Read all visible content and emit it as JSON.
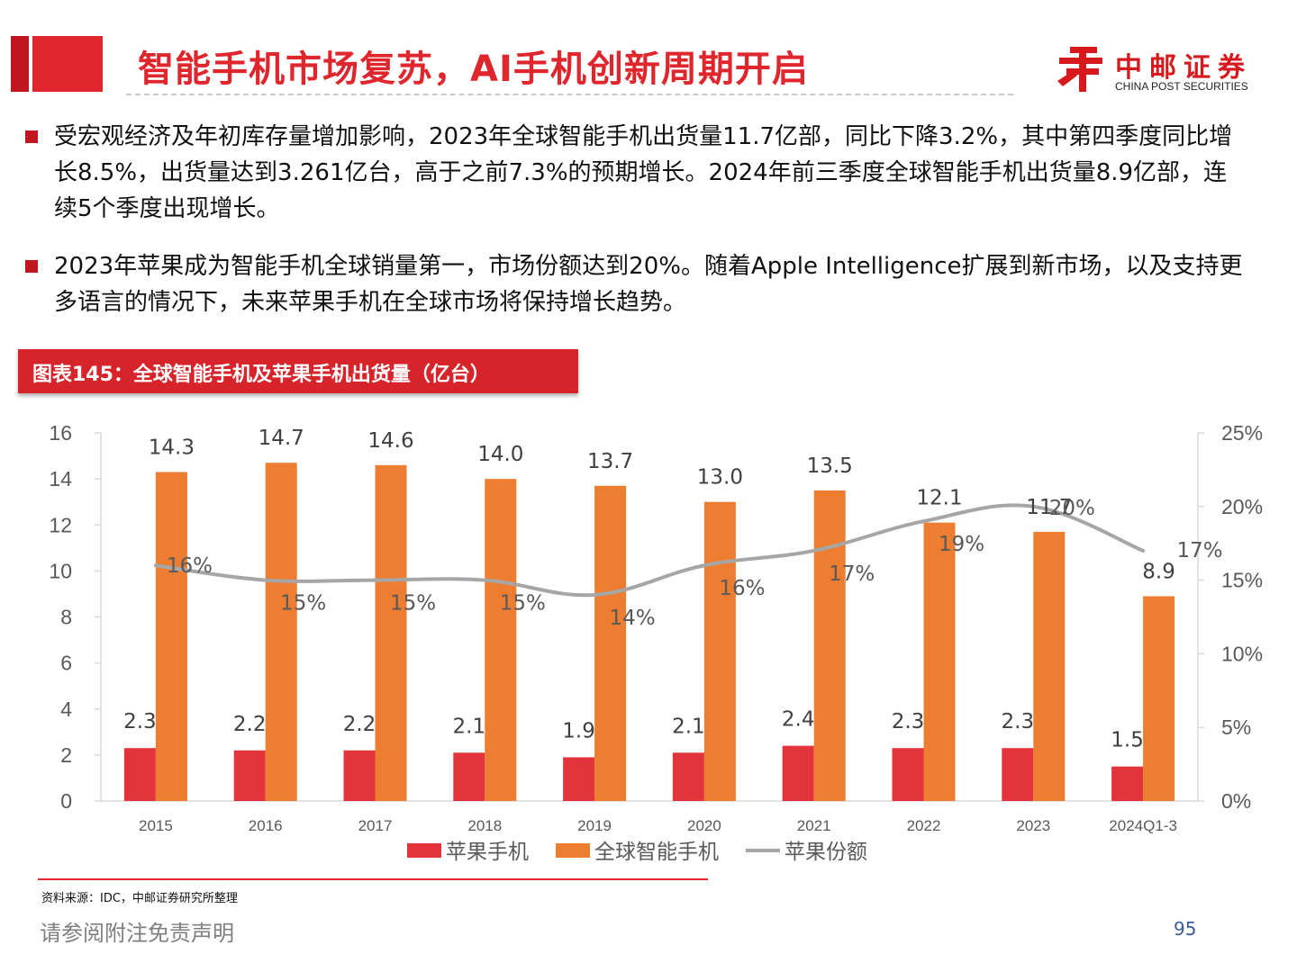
{
  "header": {
    "title": "智能手机市场复苏，AI手机创新周期开启",
    "logo_cn": "中邮证券",
    "logo_en": "CHINA POST SECURITIES"
  },
  "bullets": [
    "受宏观经济及年初库存量增加影响，2023年全球智能手机出货量11.7亿部，同比下降3.2%，其中第四季度同比增长8.5%，出货量达到3.261亿台，高于之前7.3%的预期增长。2024年前三季度全球智能手机出货量8.9亿部，连续5个季度出现增长。",
    "2023年苹果成为智能手机全球销量第一，市场份额达到20%。随着Apple Intelligence扩展到新市场，以及支持更多语言的情况下，未来苹果手机在全球市场将保持增长趋势。"
  ],
  "chart_title": "图表145：全球智能手机及苹果手机出货量（亿台）",
  "chart_data": {
    "type": "bar",
    "categories": [
      "2015",
      "2016",
      "2017",
      "2018",
      "2019",
      "2020",
      "2021",
      "2022",
      "2023",
      "2024Q1-3"
    ],
    "series": [
      {
        "name": "苹果手机",
        "kind": "bar",
        "axis": "left",
        "color": "#e3343b",
        "values": [
          2.3,
          2.2,
          2.2,
          2.1,
          1.9,
          2.1,
          2.4,
          2.3,
          2.3,
          1.5
        ],
        "labels": [
          "2.3",
          "2.2",
          "2.2",
          "2.1",
          "1.9",
          "2.1",
          "2.4",
          "2.3",
          "2.3",
          "1.5"
        ]
      },
      {
        "name": "全球智能手机",
        "kind": "bar",
        "axis": "left",
        "color": "#ed7d31",
        "values": [
          14.3,
          14.7,
          14.6,
          14.0,
          13.7,
          13.0,
          13.5,
          12.1,
          11.7,
          8.9
        ],
        "labels": [
          "14.3",
          "14.7",
          "14.6",
          "14.0",
          "13.7",
          "13.0",
          "13.5",
          "12.1",
          "11.7",
          "8.9"
        ]
      },
      {
        "name": "苹果份额",
        "kind": "line",
        "axis": "right",
        "color": "#a6a6a6",
        "values": [
          16,
          15,
          15,
          15,
          14,
          16,
          17,
          19,
          20,
          17
        ],
        "labels": [
          "16%",
          "15%",
          "15%",
          "15%",
          "14%",
          "16%",
          "17%",
          "19%",
          "20%",
          "17%"
        ]
      }
    ],
    "y_left": {
      "lim": [
        0,
        16
      ],
      "ticks": [
        "0",
        "2",
        "4",
        "6",
        "8",
        "10",
        "12",
        "14",
        "16"
      ]
    },
    "y_right": {
      "lim": [
        0,
        25
      ],
      "ticks": [
        "0%",
        "5%",
        "10%",
        "15%",
        "20%",
        "25%"
      ]
    },
    "grid": false,
    "legend_position": "bottom"
  },
  "source": "资料来源：IDC，中邮证券研究所整理",
  "footer": {
    "disclaimer": "请参阅附注免责声明",
    "page": "95"
  }
}
